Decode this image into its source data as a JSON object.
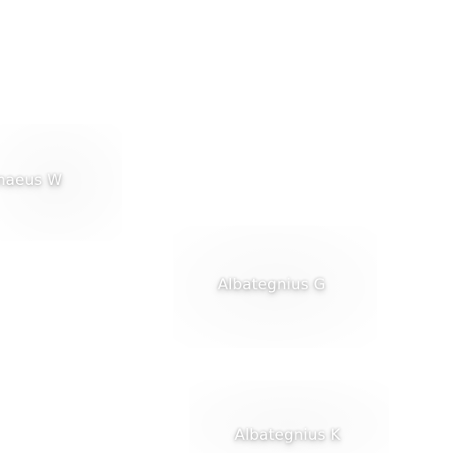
{
  "map": {
    "labels": [
      {
        "id": "label-1",
        "text": "maeus W"
      },
      {
        "id": "label-2",
        "text": "Albategnius G"
      },
      {
        "id": "label-3",
        "text": "Albategnius K"
      }
    ]
  }
}
